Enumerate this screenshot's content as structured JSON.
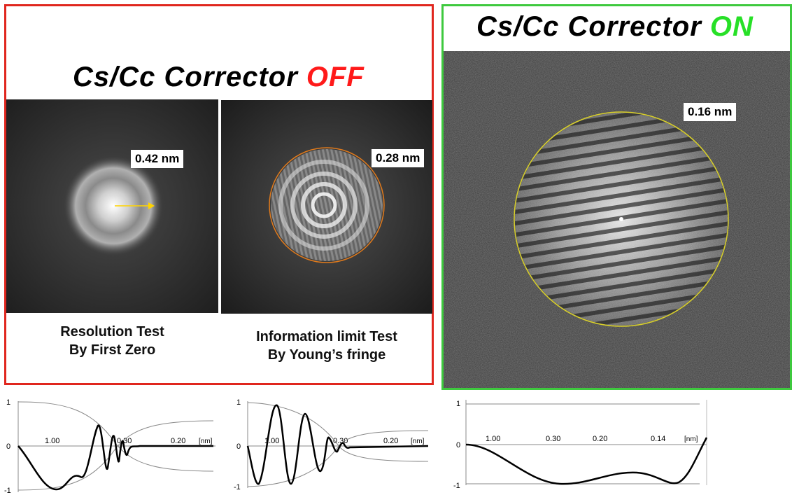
{
  "off_panel": {
    "title_prefix": "Cs/Cc Corrector ",
    "title_state": "OFF",
    "state_color": "#ff1a1a",
    "border_color": "#e0261e",
    "left_image": {
      "measure": "0.42 nm",
      "caption_line1": "Resolution Test",
      "caption_line2": "By First Zero"
    },
    "right_image": {
      "measure": "0.28 nm",
      "caption_line1": "Information limit Test",
      "caption_line2": "By Young’s fringe"
    }
  },
  "on_panel": {
    "title_prefix": "Cs/Cc Corrector ",
    "title_state": "ON",
    "state_color": "#27e027",
    "border_color": "#3ec93e",
    "image": {
      "measure": "0.16 nm"
    }
  },
  "plots": [
    {
      "y_top": "1",
      "y_mid": "0",
      "y_bot": "-1",
      "ticks": [
        "1.00",
        "0.30",
        "0.20"
      ],
      "unit": "[nm]"
    },
    {
      "y_top": "1",
      "y_mid": "0",
      "y_bot": "-1",
      "ticks": [
        "1.00",
        "0.30",
        "0.20"
      ],
      "unit": "[nm]"
    },
    {
      "y_top": "1",
      "y_mid": "0",
      "y_bot": "-1",
      "ticks": [
        "1.00",
        "0.30",
        "0.20",
        "0.14"
      ],
      "unit": "[nm]"
    }
  ]
}
